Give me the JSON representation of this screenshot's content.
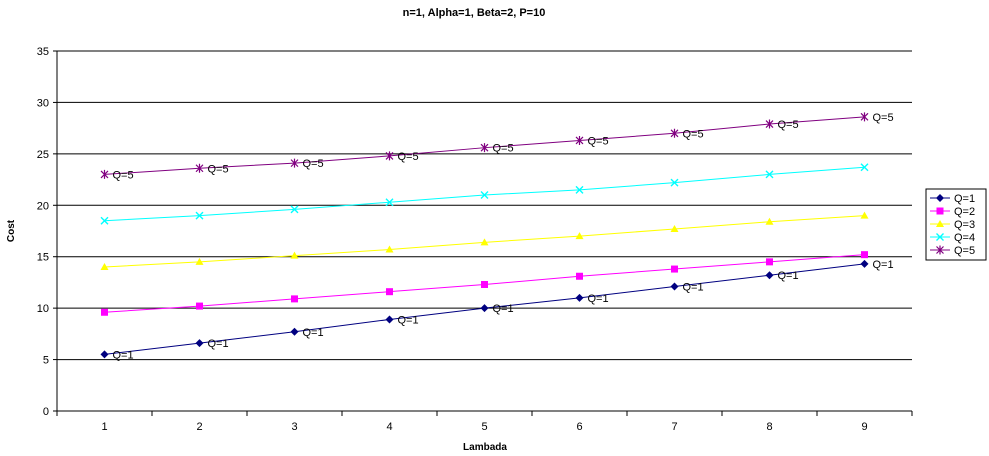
{
  "chart_data": {
    "type": "line",
    "title": "n=1, Alpha=1, Beta=2, P=10",
    "xlabel": "Lambada",
    "ylabel": "Cost",
    "x": [
      1,
      2,
      3,
      4,
      5,
      6,
      7,
      8,
      9
    ],
    "xlim": [
      0.5,
      9.5
    ],
    "ylim": [
      0,
      35
    ],
    "yticks": [
      0,
      5,
      10,
      15,
      20,
      25,
      30,
      35
    ],
    "grid": "horizontal",
    "legend": "right",
    "series": [
      {
        "name": "Q=1",
        "color": "#000080",
        "marker": "diamond",
        "point_label": "Q=1",
        "values": [
          5.5,
          6.6,
          7.7,
          8.9,
          10.0,
          11.0,
          12.1,
          13.2,
          14.3
        ]
      },
      {
        "name": "Q=2",
        "color": "#FF00FF",
        "marker": "square",
        "point_label": "",
        "values": [
          9.6,
          10.2,
          10.9,
          11.6,
          12.3,
          13.1,
          13.8,
          14.5,
          15.2
        ]
      },
      {
        "name": "Q=3",
        "color": "#FFFF00",
        "marker": "triangle",
        "point_label": "",
        "values": [
          14.0,
          14.5,
          15.1,
          15.7,
          16.4,
          17.0,
          17.7,
          18.4,
          19.0
        ]
      },
      {
        "name": "Q=4",
        "color": "#00FFFF",
        "marker": "x",
        "point_label": "",
        "values": [
          18.5,
          19.0,
          19.6,
          20.3,
          21.0,
          21.5,
          22.2,
          23.0,
          23.7
        ]
      },
      {
        "name": "Q=5",
        "color": "#800080",
        "marker": "star",
        "point_label": "Q=5",
        "values": [
          23.0,
          23.6,
          24.1,
          24.8,
          25.6,
          26.3,
          27.0,
          27.9,
          28.6
        ]
      }
    ]
  }
}
